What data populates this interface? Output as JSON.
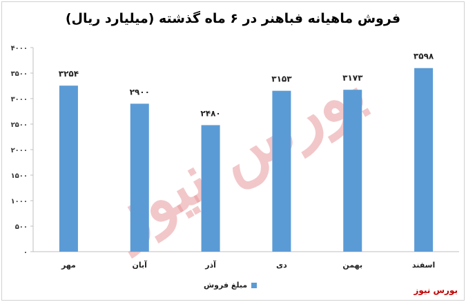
{
  "chart_data": {
    "type": "bar",
    "title": "فروش ماهیانه فباهنر در ۶ ماه گذشته (میلیارد ریال)",
    "categories": [
      "مهر",
      "آبان",
      "آذر",
      "دی",
      "بهمن",
      "اسفند"
    ],
    "values": [
      3254,
      2900,
      2480,
      3153,
      3173,
      3598
    ],
    "data_labels": [
      "۳۲۵۴",
      "۲۹۰۰",
      "۲۴۸۰",
      "۳۱۵۳",
      "۳۱۷۳",
      "۳۵۹۸"
    ],
    "yticks": [
      "۰",
      "۵۰۰",
      "۱۰۰۰",
      "۱۵۰۰",
      "۲۰۰۰",
      "۲۵۰۰",
      "۳۰۰۰",
      "۳۵۰۰",
      "۴۰۰۰"
    ],
    "ylim": [
      0,
      4000
    ],
    "series": [
      {
        "name": "مبلغ فروش",
        "values": [
          3254,
          2900,
          2480,
          3153,
          3173,
          3598
        ]
      }
    ],
    "legend_position": "bottom",
    "bar_color": "#5b9bd5",
    "grid": false
  },
  "watermark": "بورس نیوز",
  "source_label": "بورس نیوز"
}
